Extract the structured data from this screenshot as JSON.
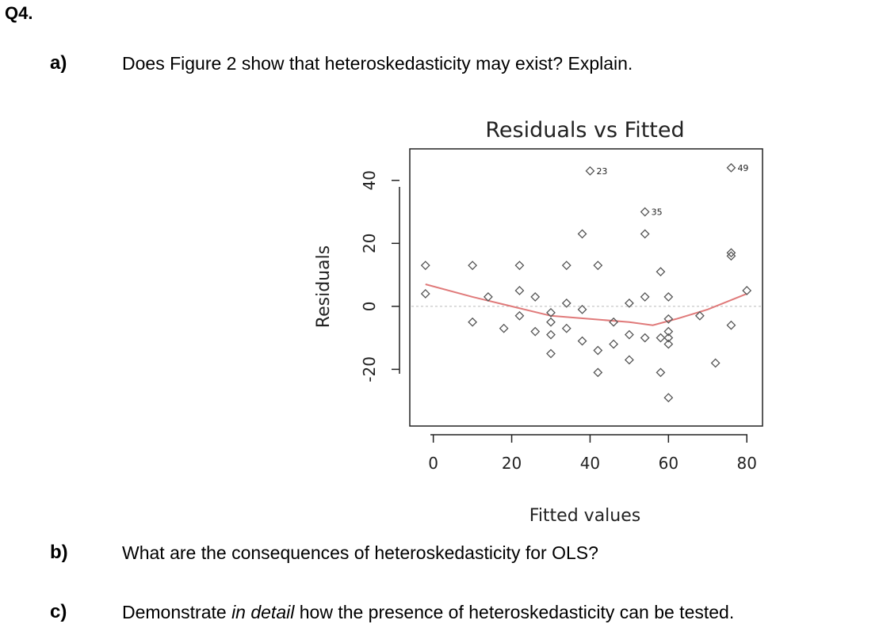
{
  "question": {
    "number": "Q4."
  },
  "parts": [
    {
      "label": "a)",
      "text": "Does Figure 2 show that heteroskedasticity may exist? Explain."
    },
    {
      "label": "b)",
      "text": "What are the consequences of heteroskedasticity for OLS?"
    },
    {
      "label": "c)",
      "text_before": "Demonstrate ",
      "text_em": "in detail",
      "text_after": " how the presence of heteroskedasticity can be tested."
    }
  ],
  "chart_data": {
    "type": "scatter",
    "title": "Residuals vs Fitted",
    "xlabel": "Fitted values",
    "ylabel": "Residuals",
    "xlim": [
      -6,
      84
    ],
    "ylim": [
      -38,
      50
    ],
    "xticks": [
      0,
      20,
      40,
      60,
      80
    ],
    "yticks": [
      -20,
      0,
      20,
      40
    ],
    "zero_line": true,
    "grid": false,
    "points": [
      {
        "x": -2,
        "y": 13
      },
      {
        "x": -2,
        "y": 4
      },
      {
        "x": 10,
        "y": 13
      },
      {
        "x": 10,
        "y": -5
      },
      {
        "x": 14,
        "y": 3
      },
      {
        "x": 18,
        "y": -7
      },
      {
        "x": 22,
        "y": 13
      },
      {
        "x": 22,
        "y": 5
      },
      {
        "x": 22,
        "y": -3
      },
      {
        "x": 26,
        "y": 3
      },
      {
        "x": 26,
        "y": -8
      },
      {
        "x": 30,
        "y": -2
      },
      {
        "x": 30,
        "y": -5
      },
      {
        "x": 30,
        "y": -9
      },
      {
        "x": 30,
        "y": -15
      },
      {
        "x": 34,
        "y": 13
      },
      {
        "x": 34,
        "y": 1
      },
      {
        "x": 34,
        "y": -7
      },
      {
        "x": 38,
        "y": 23
      },
      {
        "x": 38,
        "y": -1
      },
      {
        "x": 38,
        "y": -11
      },
      {
        "x": 40,
        "y": 43,
        "label": "23"
      },
      {
        "x": 42,
        "y": 13
      },
      {
        "x": 42,
        "y": -14
      },
      {
        "x": 42,
        "y": -21
      },
      {
        "x": 46,
        "y": -5
      },
      {
        "x": 46,
        "y": -12
      },
      {
        "x": 50,
        "y": 1
      },
      {
        "x": 50,
        "y": -9
      },
      {
        "x": 50,
        "y": -17
      },
      {
        "x": 54,
        "y": 30,
        "label": "35"
      },
      {
        "x": 54,
        "y": 23
      },
      {
        "x": 54,
        "y": 3
      },
      {
        "x": 54,
        "y": -10
      },
      {
        "x": 58,
        "y": 11
      },
      {
        "x": 58,
        "y": -10
      },
      {
        "x": 58,
        "y": -21
      },
      {
        "x": 60,
        "y": 3
      },
      {
        "x": 60,
        "y": -4
      },
      {
        "x": 60,
        "y": -8
      },
      {
        "x": 60,
        "y": -10
      },
      {
        "x": 60,
        "y": -12
      },
      {
        "x": 60,
        "y": -29
      },
      {
        "x": 68,
        "y": -3
      },
      {
        "x": 72,
        "y": -18
      },
      {
        "x": 76,
        "y": 44,
        "label": "49"
      },
      {
        "x": 76,
        "y": 16
      },
      {
        "x": 76,
        "y": 17
      },
      {
        "x": 76,
        "y": -6
      },
      {
        "x": 80,
        "y": 5
      }
    ],
    "smooth_line": [
      {
        "x": -2,
        "y": 7
      },
      {
        "x": 10,
        "y": 3
      },
      {
        "x": 20,
        "y": 0
      },
      {
        "x": 30,
        "y": -3
      },
      {
        "x": 40,
        "y": -4
      },
      {
        "x": 50,
        "y": -5
      },
      {
        "x": 56,
        "y": -6
      },
      {
        "x": 62,
        "y": -4
      },
      {
        "x": 70,
        "y": -1
      },
      {
        "x": 80,
        "y": 4
      }
    ],
    "colors": {
      "points": "#555555",
      "smooth": "#e07a7a",
      "zero_line": "#bbbbbb",
      "axis": "#222222"
    }
  }
}
